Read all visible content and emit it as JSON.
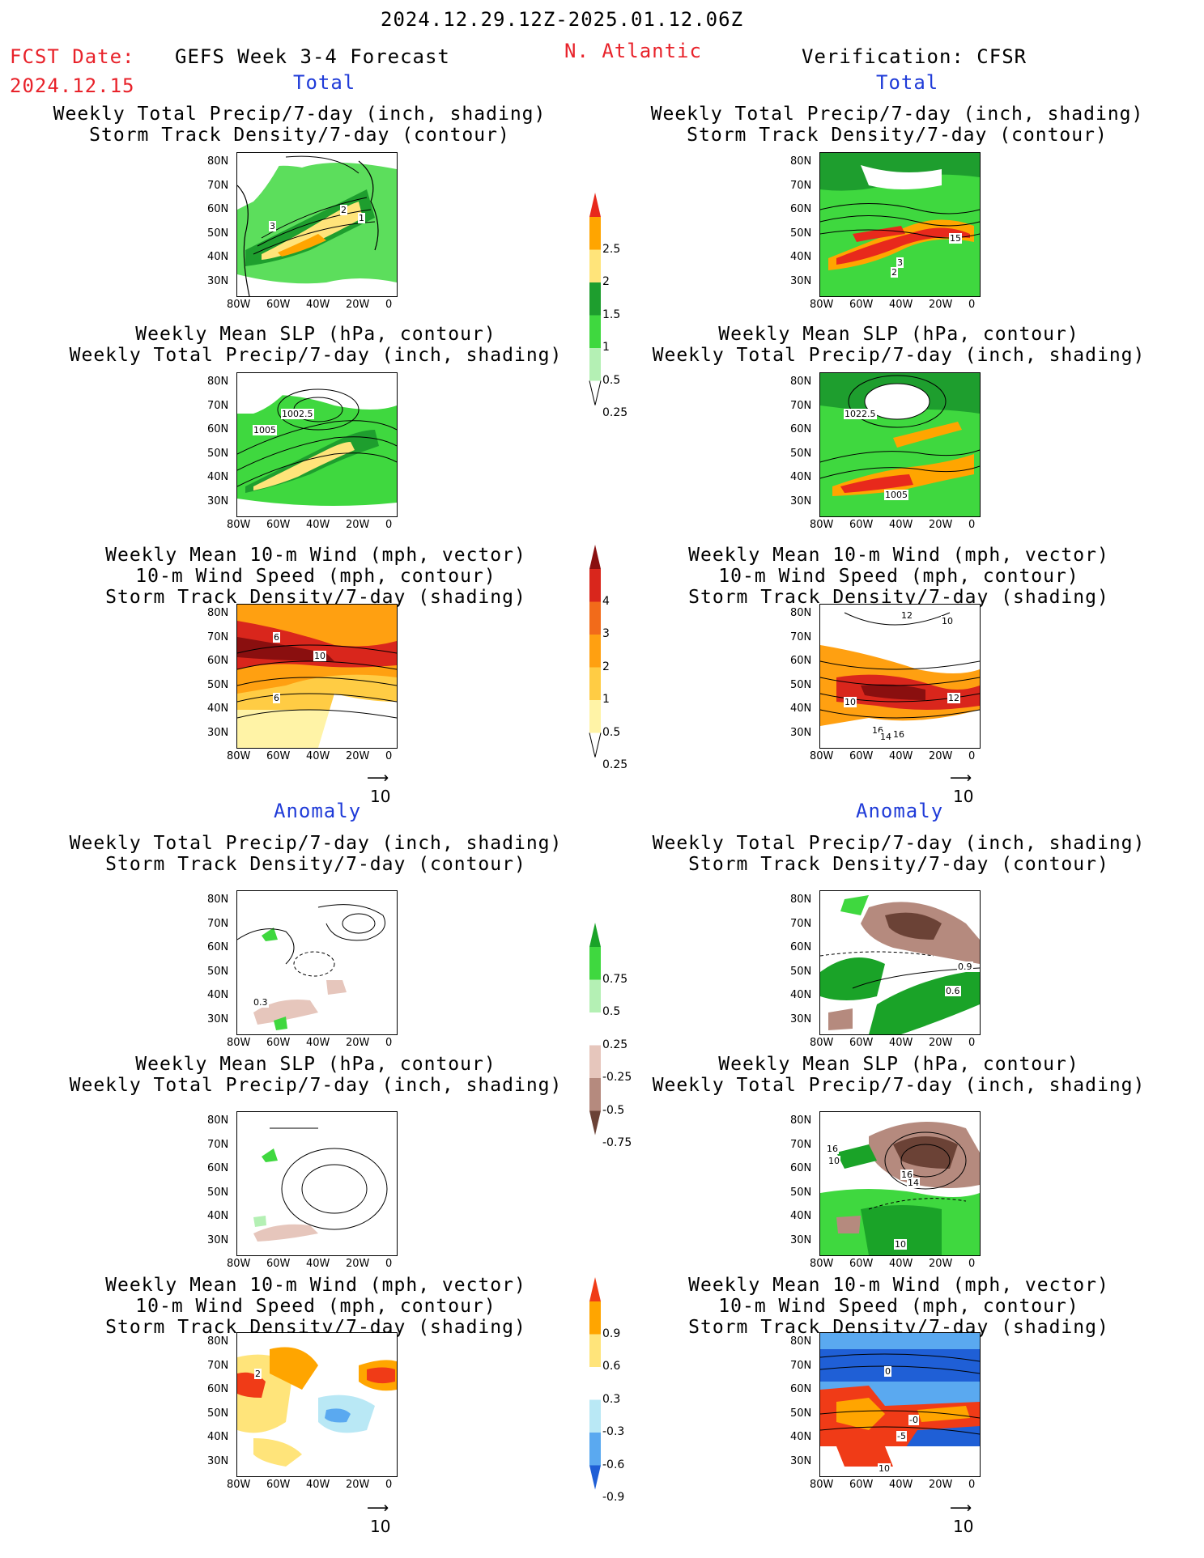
{
  "header": {
    "period": "2024.12.29.12Z-2025.01.12.06Z",
    "fcst_label": "FCST Date:",
    "fcst_date": "2024.12.15",
    "model_title": "GEFS Week 3-4 Forecast",
    "region": "N. Atlantic",
    "verification": "Verification: CFSR"
  },
  "sections": {
    "total": "Total",
    "anomaly": "Anomaly"
  },
  "panel_titles": {
    "precip_track": "Weekly Total Precip/7-day (inch, shading)\nStorm Track Density/7-day (contour)",
    "slp_precip": "Weekly Mean SLP (hPa, contour)\nWeekly Total Precip/7-day (inch, shading)",
    "wind_track": "Weekly Mean 10-m Wind (mph, vector)\n10-m Wind Speed (mph, contour)\nStorm Track Density/7-day (shading)"
  },
  "axes": {
    "lat_ticks": [
      "80N",
      "70N",
      "60N",
      "50N",
      "40N",
      "30N"
    ],
    "lon_ticks": [
      "80W",
      "60W",
      "40W",
      "20W",
      "0"
    ]
  },
  "vector_ref": "10",
  "colorbars": {
    "precip": {
      "labels": [
        "2.5",
        "2",
        "1.5",
        "1",
        "0.5",
        "0.25"
      ],
      "colors": [
        "#e8291c",
        "#ffa500",
        "#ffe47a",
        "#1e9e2e",
        "#3fd83f",
        "#b4f0b4"
      ]
    },
    "track": {
      "labels": [
        "4",
        "3",
        "2",
        "1",
        "0.5",
        "0.25"
      ],
      "colors": [
        "#8a0f0f",
        "#d9261c",
        "#f26b1a",
        "#ffa011",
        "#ffcc44",
        "#fff3a6"
      ]
    },
    "precip_anom": {
      "labels": [
        "0.75",
        "0.5",
        "0.25",
        "-0.25",
        "-0.5",
        "-0.75"
      ],
      "colors": [
        "#1aa328",
        "#3fd83f",
        "#b4f0b4",
        "#ffffff",
        "#e6c6bc",
        "#b58a7e",
        "#6b4236"
      ]
    },
    "track_anom": {
      "labels": [
        "0.9",
        "0.6",
        "0.3",
        "-0.3",
        "-0.6",
        "-0.9"
      ],
      "colors": [
        "#f03b17",
        "#ffa500",
        "#ffe47a",
        "#ffffff",
        "#b9e8f5",
        "#5aa9f0",
        "#1f5fd6"
      ]
    }
  },
  "contour_labels": {
    "t1_left": [
      "3",
      "2",
      "1"
    ],
    "t1_right": [
      "15",
      "3",
      "2"
    ],
    "t2_left": [
      "1002.5",
      "1005"
    ],
    "t2_right": [
      "1022.5",
      "1005"
    ],
    "t3_left": [
      "6",
      "6",
      "10"
    ],
    "t3_right": [
      "12",
      "10",
      "10",
      "12",
      "16",
      "14",
      "16"
    ],
    "a1_left": [
      "0.3"
    ],
    "a1_right": [
      "0.9",
      "0.6"
    ],
    "a2_right": [
      "16",
      "10",
      "16",
      "14",
      "10"
    ],
    "a3_left": [
      "2"
    ],
    "a3_right": [
      "0",
      "-0",
      "-5",
      "10"
    ]
  }
}
